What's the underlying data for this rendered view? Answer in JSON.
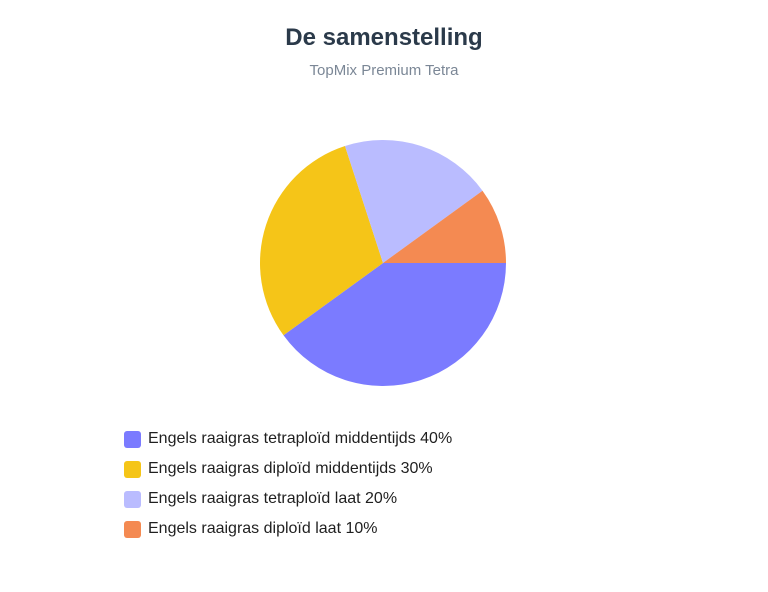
{
  "header": {
    "title": "De samenstelling",
    "subtitle": "TopMix Premium Tetra"
  },
  "chart_data": {
    "type": "pie",
    "title": "De samenstelling",
    "subtitle": "TopMix Premium Tetra",
    "legend_position": "bottom-left",
    "slices": [
      {
        "label": "Engels raaigras tetraploïd middentijds 40%",
        "value": 40,
        "color": "#7b7bff"
      },
      {
        "label": "Engels raaigras diploïd middentijds 30%",
        "value": 30,
        "color": "#f5c518"
      },
      {
        "label": "Engels raaigras tetraploïd laat 20%",
        "value": 20,
        "color": "#babcff"
      },
      {
        "label": "Engels raaigras diploïd laat 10%",
        "value": 10,
        "color": "#f48a52"
      }
    ]
  }
}
